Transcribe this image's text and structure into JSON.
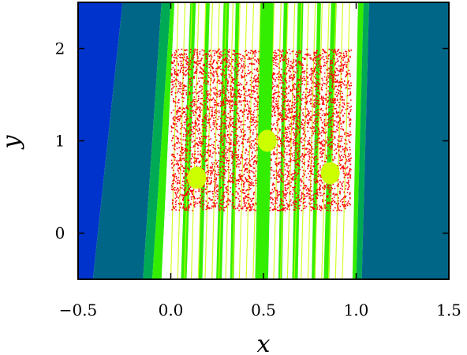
{
  "chart_data": {
    "type": "heatmap",
    "title": "",
    "xlabel": "x",
    "ylabel": "y",
    "xlim": [
      -0.5,
      1.5
    ],
    "ylim": [
      -0.5,
      2.5
    ],
    "x_ticks": [
      -0.5,
      0.0,
      0.5,
      1.0,
      1.5
    ],
    "x_tick_labels": [
      "−0.5",
      "0.0",
      "0.5",
      "1.0",
      "1.5"
    ],
    "y_ticks": [
      0,
      1,
      2
    ],
    "y_tick_labels": [
      "0",
      "1",
      "2"
    ],
    "grid": false,
    "legend": "none",
    "colors": {
      "region_blue": "#0033cc",
      "region_teal": "#006688",
      "region_green": "#00aa55",
      "region_bright_green": "#33ee00",
      "region_yellow": "#ccff00",
      "region_white": "#ffffff",
      "scatter_red": "#ff0000"
    },
    "background_regions": [
      {
        "color": "#0033cc",
        "polygon": [
          [
            -0.5,
            2.5
          ],
          [
            -0.26,
            2.5
          ],
          [
            -0.42,
            -0.5
          ],
          [
            -0.5,
            -0.5
          ]
        ]
      },
      {
        "color": "#006688",
        "polygon": [
          [
            -0.26,
            2.5
          ],
          [
            -0.05,
            2.5
          ],
          [
            -0.15,
            -0.5
          ],
          [
            -0.42,
            -0.5
          ]
        ]
      },
      {
        "color": "#00aa55",
        "polygon": [
          [
            -0.05,
            2.5
          ],
          [
            0.0,
            2.5
          ],
          [
            -0.1,
            -0.5
          ],
          [
            -0.15,
            -0.5
          ]
        ]
      },
      {
        "color": "#33ee00",
        "polygon": [
          [
            0.0,
            2.5
          ],
          [
            0.02,
            2.5
          ],
          [
            -0.05,
            -0.5
          ],
          [
            -0.1,
            -0.5
          ]
        ]
      },
      {
        "color": "#ffffff",
        "polygon": [
          [
            0.02,
            2.5
          ],
          [
            1.01,
            2.5
          ],
          [
            0.98,
            -0.5
          ],
          [
            -0.05,
            -0.5
          ]
        ]
      },
      {
        "color": "#33ee00",
        "polygon": [
          [
            1.01,
            2.5
          ],
          [
            1.04,
            2.5
          ],
          [
            1.0,
            -0.5
          ],
          [
            0.98,
            -0.5
          ]
        ]
      },
      {
        "color": "#00aa55",
        "polygon": [
          [
            1.04,
            2.5
          ],
          [
            1.07,
            2.5
          ],
          [
            1.03,
            -0.5
          ],
          [
            1.0,
            -0.5
          ]
        ]
      },
      {
        "color": "#006688",
        "polygon": [
          [
            1.07,
            2.5
          ],
          [
            1.5,
            2.5
          ],
          [
            1.5,
            -0.5
          ],
          [
            1.03,
            -0.5
          ]
        ]
      }
    ],
    "green_stripes": [
      {
        "x_top": 0.12,
        "x_bottom": 0.07,
        "width": 0.03
      },
      {
        "x_top": 0.2,
        "x_bottom": 0.16,
        "width": 0.02
      },
      {
        "x_top": 0.3,
        "x_bottom": 0.26,
        "width": 0.03
      },
      {
        "x_top": 0.36,
        "x_bottom": 0.33,
        "width": 0.02
      },
      {
        "x_top": 0.62,
        "x_bottom": 0.59,
        "width": 0.02
      },
      {
        "x_top": 0.7,
        "x_bottom": 0.67,
        "width": 0.03
      },
      {
        "x_top": 0.8,
        "x_bottom": 0.77,
        "width": 0.02
      },
      {
        "x_top": 0.88,
        "x_bottom": 0.84,
        "width": 0.03
      }
    ],
    "central_column": {
      "x_top": 0.52,
      "x_bottom": 0.49,
      "width": 0.07
    },
    "scatter_region": {
      "x_range": [
        0.0,
        0.97
      ],
      "y_range": [
        0.25,
        2.0
      ],
      "color": "#ff0000"
    },
    "yellow_points": [
      {
        "x": 0.52,
        "y": 1.0
      },
      {
        "x": 0.14,
        "y": 0.6
      },
      {
        "x": 0.86,
        "y": 0.65
      }
    ]
  }
}
